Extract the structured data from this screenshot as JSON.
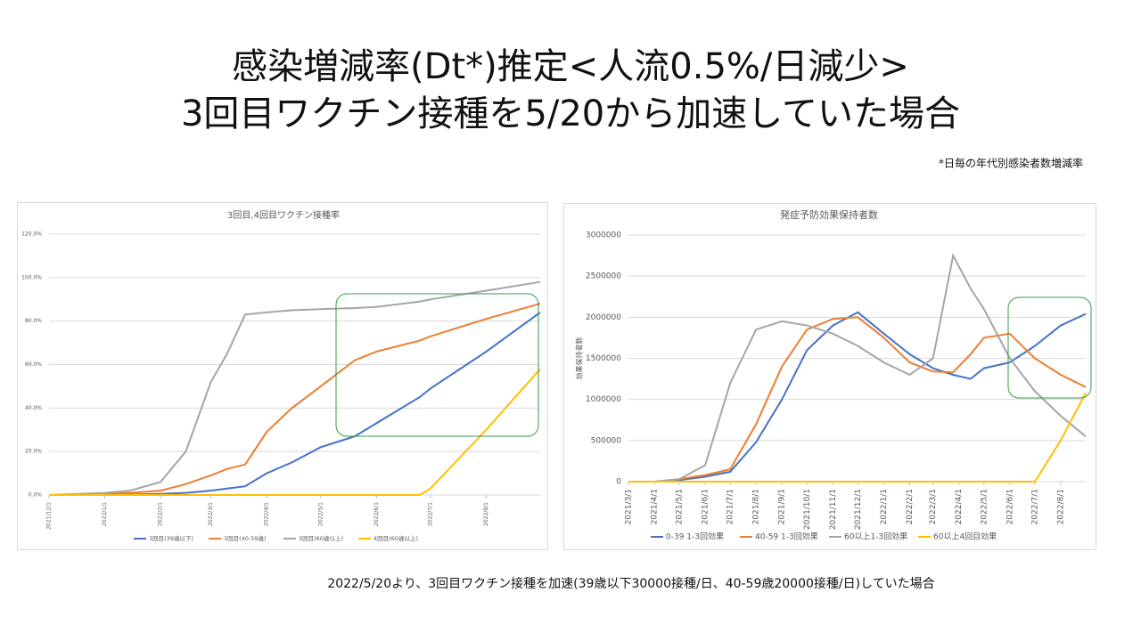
{
  "header": {
    "title_lines": [
      "感染増減率(Dt*)推定<人流0.5%/日減少>",
      "3回目ワクチン接種を5/20から加速していた場合"
    ],
    "note": "*日毎の年代別感染者数増減率"
  },
  "footer": "2022/5/20より、3回目ワクチン接種を加速(39歳以下30000接種/日、40-59歳20000接種/日)していた場合",
  "chart_data": [
    {
      "type": "line",
      "title": "3回目,4回目ワクチン接種率",
      "x": [
        "2021/12/1",
        "2022/1/1",
        "2022/1/15",
        "2022/2/1",
        "2022/2/15",
        "2022/3/1",
        "2022/3/10",
        "2022/3/20",
        "2022/4/1",
        "2022/4/15",
        "2022/5/1",
        "2022/5/20",
        "2022/6/1",
        "2022/6/25",
        "2022/7/1",
        "2022/8/1",
        "2022/8/31"
      ],
      "xlim": [
        "2021/12/1",
        "2022/8/31"
      ],
      "xticks": [
        "2021/12/1",
        "2022/1/1",
        "2022/2/1",
        "2022/3/1",
        "2022/4/1",
        "2022/5/1",
        "2022/6/1",
        "2022/7/1",
        "2022/8/1"
      ],
      "ylim": [
        0,
        120
      ],
      "yticks": [
        {
          "value": 0,
          "label": "0.0%"
        },
        {
          "value": 20,
          "label": "20.0%"
        },
        {
          "value": 40,
          "label": "40.0%"
        },
        {
          "value": 60,
          "label": "60.0%"
        },
        {
          "value": 80,
          "label": "80.0%"
        },
        {
          "value": 100,
          "label": "100.0%"
        },
        {
          "value": 120,
          "label": "120.0%"
        }
      ],
      "grid": true,
      "legend": "bottom",
      "series": [
        {
          "name": "3回目(39歳以下)",
          "color": "#4472c4",
          "values": [
            0,
            0,
            0.2,
            0.5,
            1,
            2,
            3,
            4,
            10,
            15,
            22,
            27,
            33,
            45,
            49,
            66,
            84
          ]
        },
        {
          "name": "3回目(40-59歳)",
          "color": "#ed7d31",
          "values": [
            0,
            0.5,
            1,
            2,
            5,
            9,
            12,
            14,
            29,
            40,
            50,
            62,
            66,
            71,
            73,
            81,
            88
          ]
        },
        {
          "name": "3回目(60歳以上)",
          "color": "#a5a5a5",
          "values": [
            0,
            1,
            2,
            6,
            20,
            52,
            65,
            83,
            84,
            85,
            85.5,
            86,
            86.5,
            89,
            90,
            94,
            98
          ]
        },
        {
          "name": "4回目(60歳以上)",
          "color": "#ffc000",
          "values": [
            0,
            0,
            0,
            0,
            0,
            0,
            0,
            0,
            0,
            0,
            0,
            0,
            0,
            0,
            3,
            30,
            58
          ]
        }
      ]
    },
    {
      "type": "line",
      "title": "発症予防効果保持者数",
      "y_label": "効果保持者数",
      "x": [
        "2021/3/1",
        "2021/4/1",
        "2021/5/1",
        "2021/6/1",
        "2021/7/1",
        "2021/8/1",
        "2021/9/1",
        "2021/10/1",
        "2021/11/1",
        "2021/12/1",
        "2022/1/1",
        "2022/2/1",
        "2022/3/1",
        "2022/3/25",
        "2022/4/15",
        "2022/5/1",
        "2022/6/1",
        "2022/7/1",
        "2022/8/1",
        "2022/8/31"
      ],
      "xlim": [
        "2021/3/1",
        "2022/8/31"
      ],
      "xticks": [
        "2021/3/1",
        "2021/4/1",
        "2021/5/1",
        "2021/6/1",
        "2021/7/1",
        "2021/8/1",
        "2021/9/1",
        "2021/10/1",
        "2021/11/1",
        "2021/12/1",
        "2022/1/1",
        "2022/2/1",
        "2022/3/1",
        "2022/4/1",
        "2022/5/1",
        "2022/6/1",
        "2022/7/1",
        "2022/8/1"
      ],
      "ylim": [
        0,
        3000000
      ],
      "yticks": [
        0,
        500000,
        1000000,
        1500000,
        2000000,
        2500000,
        3000000
      ],
      "grid": true,
      "legend": "bottom",
      "series": [
        {
          "name": "0-39 1-3回効果",
          "color": "#4472c4",
          "values": [
            0,
            0,
            20000,
            60000,
            120000,
            480000,
            1000000,
            1600000,
            1900000,
            2060000,
            1800000,
            1550000,
            1380000,
            1300000,
            1250000,
            1380000,
            1450000,
            1650000,
            1900000,
            2040000
          ]
        },
        {
          "name": "40-59 1-3回効果",
          "color": "#ed7d31",
          "values": [
            0,
            0,
            30000,
            80000,
            150000,
            700000,
            1400000,
            1850000,
            1980000,
            2000000,
            1750000,
            1450000,
            1340000,
            1330000,
            1550000,
            1750000,
            1800000,
            1500000,
            1300000,
            1150000
          ]
        },
        {
          "name": "60以上1-3回効果",
          "color": "#a5a5a5",
          "values": [
            0,
            0,
            30000,
            200000,
            1200000,
            1850000,
            1950000,
            1900000,
            1800000,
            1650000,
            1450000,
            1300000,
            1500000,
            2750000,
            2350000,
            2100000,
            1500000,
            1100000,
            800000,
            550000
          ]
        },
        {
          "name": "60以上4回目効果",
          "color": "#ffc000",
          "values": [
            0,
            0,
            0,
            0,
            0,
            0,
            0,
            0,
            0,
            0,
            0,
            0,
            0,
            0,
            0,
            0,
            0,
            0,
            500000,
            1080000
          ]
        }
      ]
    }
  ]
}
